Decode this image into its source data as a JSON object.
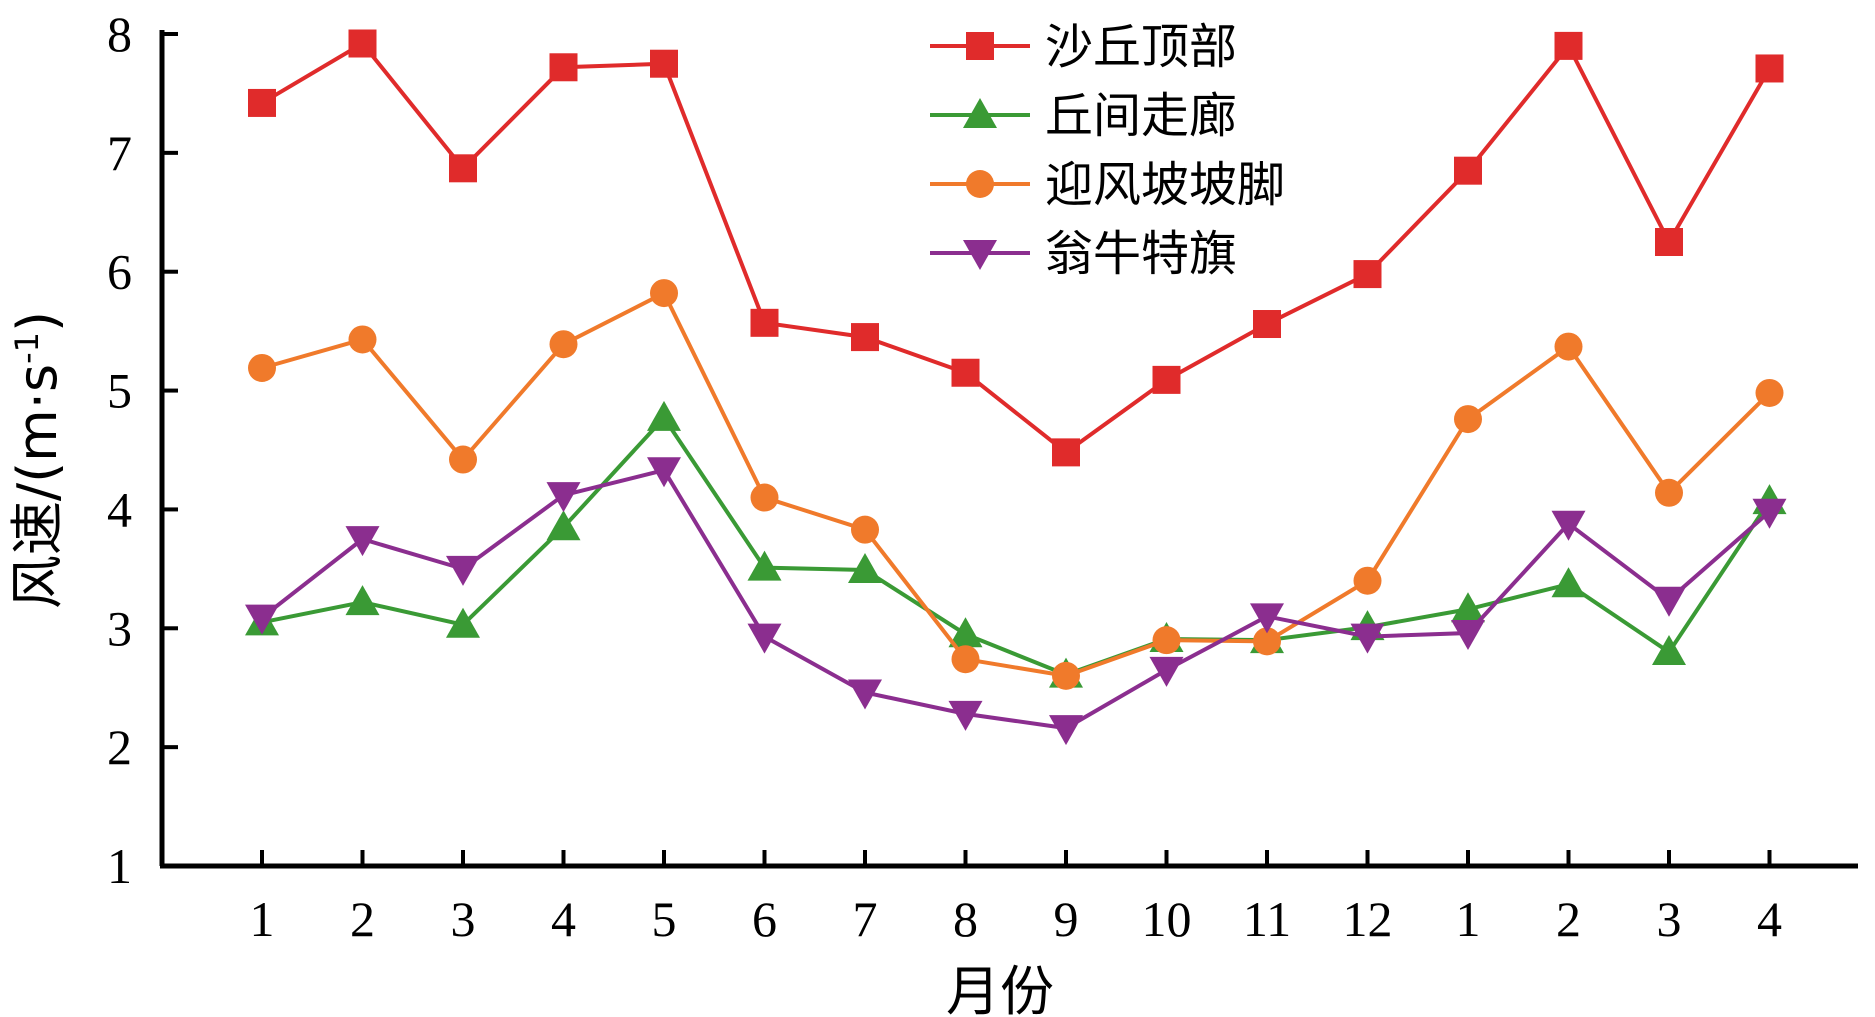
{
  "chart_data": {
    "type": "line",
    "categories": [
      "1",
      "2",
      "3",
      "4",
      "5",
      "6",
      "7",
      "8",
      "9",
      "10",
      "11",
      "12",
      "1",
      "2",
      "3",
      "4"
    ],
    "xlabel": "月份",
    "ylabel": "风速/(m·s",
    "ylabel_sup": "-1",
    "ylabel_close": ")",
    "ylim": [
      1,
      8
    ],
    "yticks": [
      1,
      2,
      3,
      4,
      5,
      6,
      7,
      8
    ],
    "grid": false,
    "legend_position": "top-center",
    "series": [
      {
        "name": "沙丘顶部",
        "color": "#e02b2b",
        "marker": "square",
        "values": [
          7.42,
          7.92,
          6.87,
          7.72,
          7.75,
          5.57,
          5.45,
          5.15,
          4.48,
          5.09,
          5.56,
          5.98,
          6.85,
          7.9,
          6.25,
          7.71
        ]
      },
      {
        "name": "丘间走廊",
        "color": "#3a9a35",
        "marker": "triangle-up",
        "values": [
          3.05,
          3.22,
          3.03,
          3.85,
          4.77,
          3.51,
          3.49,
          2.95,
          2.61,
          2.91,
          2.9,
          3.01,
          3.16,
          3.37,
          2.8,
          4.07
        ]
      },
      {
        "name": "迎风坡坡脚",
        "color": "#f07a2b",
        "marker": "circle",
        "values": [
          5.19,
          5.43,
          4.42,
          5.39,
          5.82,
          4.1,
          3.83,
          2.74,
          2.6,
          2.9,
          2.89,
          3.4,
          4.76,
          5.37,
          4.14,
          4.98
        ]
      },
      {
        "name": "翁牛特旗",
        "color": "#8b2e8f",
        "marker": "triangle-down",
        "values": [
          3.09,
          3.75,
          3.5,
          4.12,
          4.33,
          2.93,
          2.46,
          2.28,
          2.16,
          2.65,
          3.1,
          2.93,
          2.96,
          3.88,
          3.24,
          3.98
        ]
      }
    ]
  }
}
